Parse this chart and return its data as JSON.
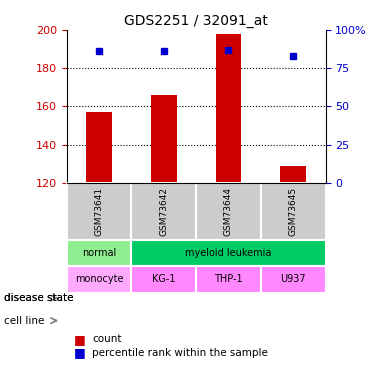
{
  "title": "GDS2251 / 32091_at",
  "samples": [
    "GSM73641",
    "GSM73642",
    "GSM73644",
    "GSM73645"
  ],
  "counts": [
    157,
    166,
    198,
    129
  ],
  "percentile_ranks": [
    86,
    86,
    87,
    83
  ],
  "ylim_left": [
    120,
    200
  ],
  "ylim_right": [
    0,
    100
  ],
  "yticks_left": [
    120,
    140,
    160,
    180,
    200
  ],
  "yticks_right": [
    0,
    25,
    50,
    75,
    100
  ],
  "ytick_right_labels": [
    "0",
    "25",
    "50",
    "75",
    "100%"
  ],
  "bar_color": "#cc0000",
  "dot_color": "#0000cc",
  "grid_color": "#000000",
  "disease_state_label": "disease state",
  "cell_line_label": "cell line",
  "disease_states": [
    "normal",
    "myeloid leukemia",
    "myeloid leukemia",
    "myeloid leukemia"
  ],
  "cell_lines": [
    "monocyte",
    "KG-1",
    "THP-1",
    "U937"
  ],
  "disease_state_colors": {
    "normal": "#90ee90",
    "myeloid leukemia": "#00cc66"
  },
  "cell_line_colors": {
    "monocyte": "#ffaaff",
    "KG-1": "#ff88ff",
    "THP-1": "#ff88ff",
    "U937": "#ff88ff"
  },
  "sample_bg_color": "#cccccc",
  "legend_count_color": "#cc0000",
  "legend_pct_color": "#0000cc",
  "bar_width": 0.4
}
